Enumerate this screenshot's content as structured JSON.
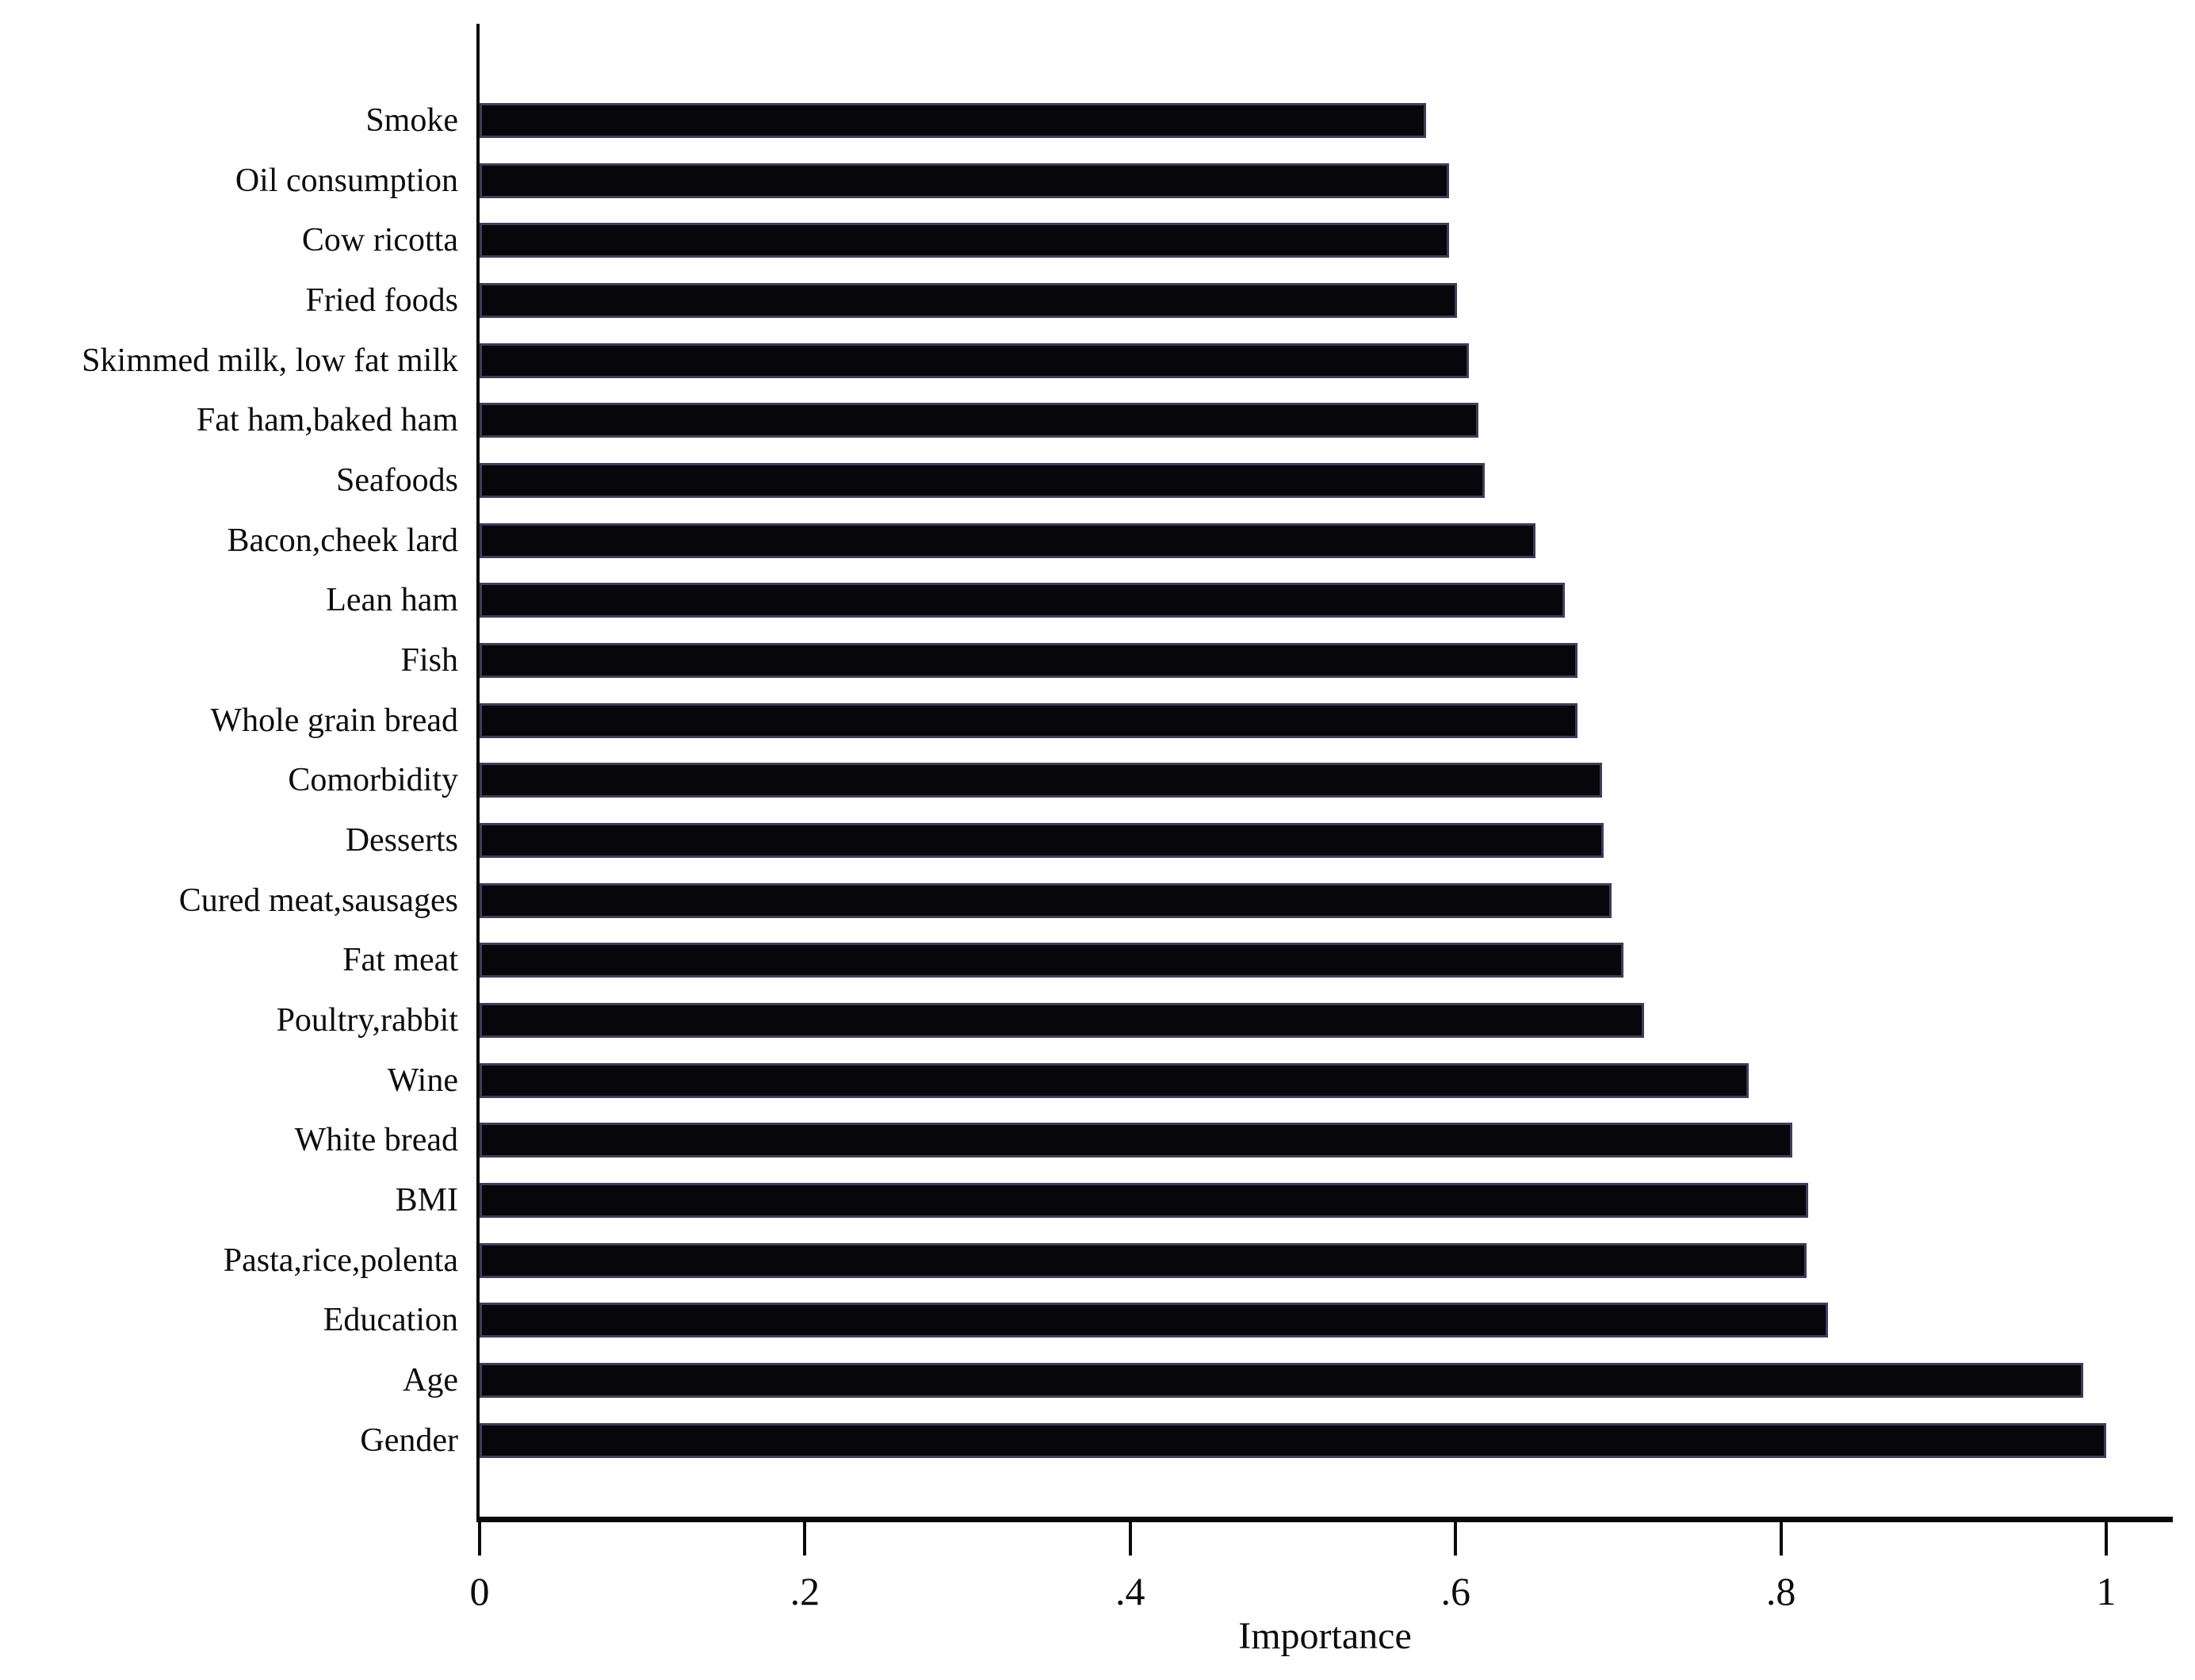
{
  "chart_data": {
    "type": "bar",
    "orientation": "horizontal",
    "title": "",
    "xlabel": "Importance",
    "ylabel": "",
    "xlim": [
      0,
      1.04
    ],
    "grid": false,
    "legend": false,
    "bar_color": "#06060b",
    "bar_edge_color": "#3d3d58",
    "axis_color": "#0a0a0a",
    "xticks": {
      "values": [
        0,
        0.2,
        0.4,
        0.6,
        0.8,
        1
      ],
      "labels": [
        "0",
        ".2",
        ".4",
        ".6",
        ".8",
        "1"
      ]
    },
    "categories": [
      "Smoke",
      "Oil consumption",
      "Cow ricotta",
      "Fried foods",
      "Skimmed milk, low fat milk",
      "Fat ham,baked ham",
      "Seafoods",
      "Bacon,cheek lard",
      "Lean ham",
      "Fish",
      "Whole grain bread",
      "Comorbidity",
      "Desserts",
      "Cured meat,sausages",
      "Fat meat",
      "Poultry,rabbit",
      "Wine",
      "White bread",
      "BMI",
      "Pasta,rice,polenta",
      "Education",
      "Age",
      "Gender"
    ],
    "values": [
      0.582,
      0.596,
      0.596,
      0.601,
      0.608,
      0.614,
      0.618,
      0.649,
      0.667,
      0.675,
      0.675,
      0.69,
      0.691,
      0.696,
      0.703,
      0.716,
      0.78,
      0.807,
      0.817,
      0.816,
      0.829,
      0.986,
      1.0
    ]
  }
}
